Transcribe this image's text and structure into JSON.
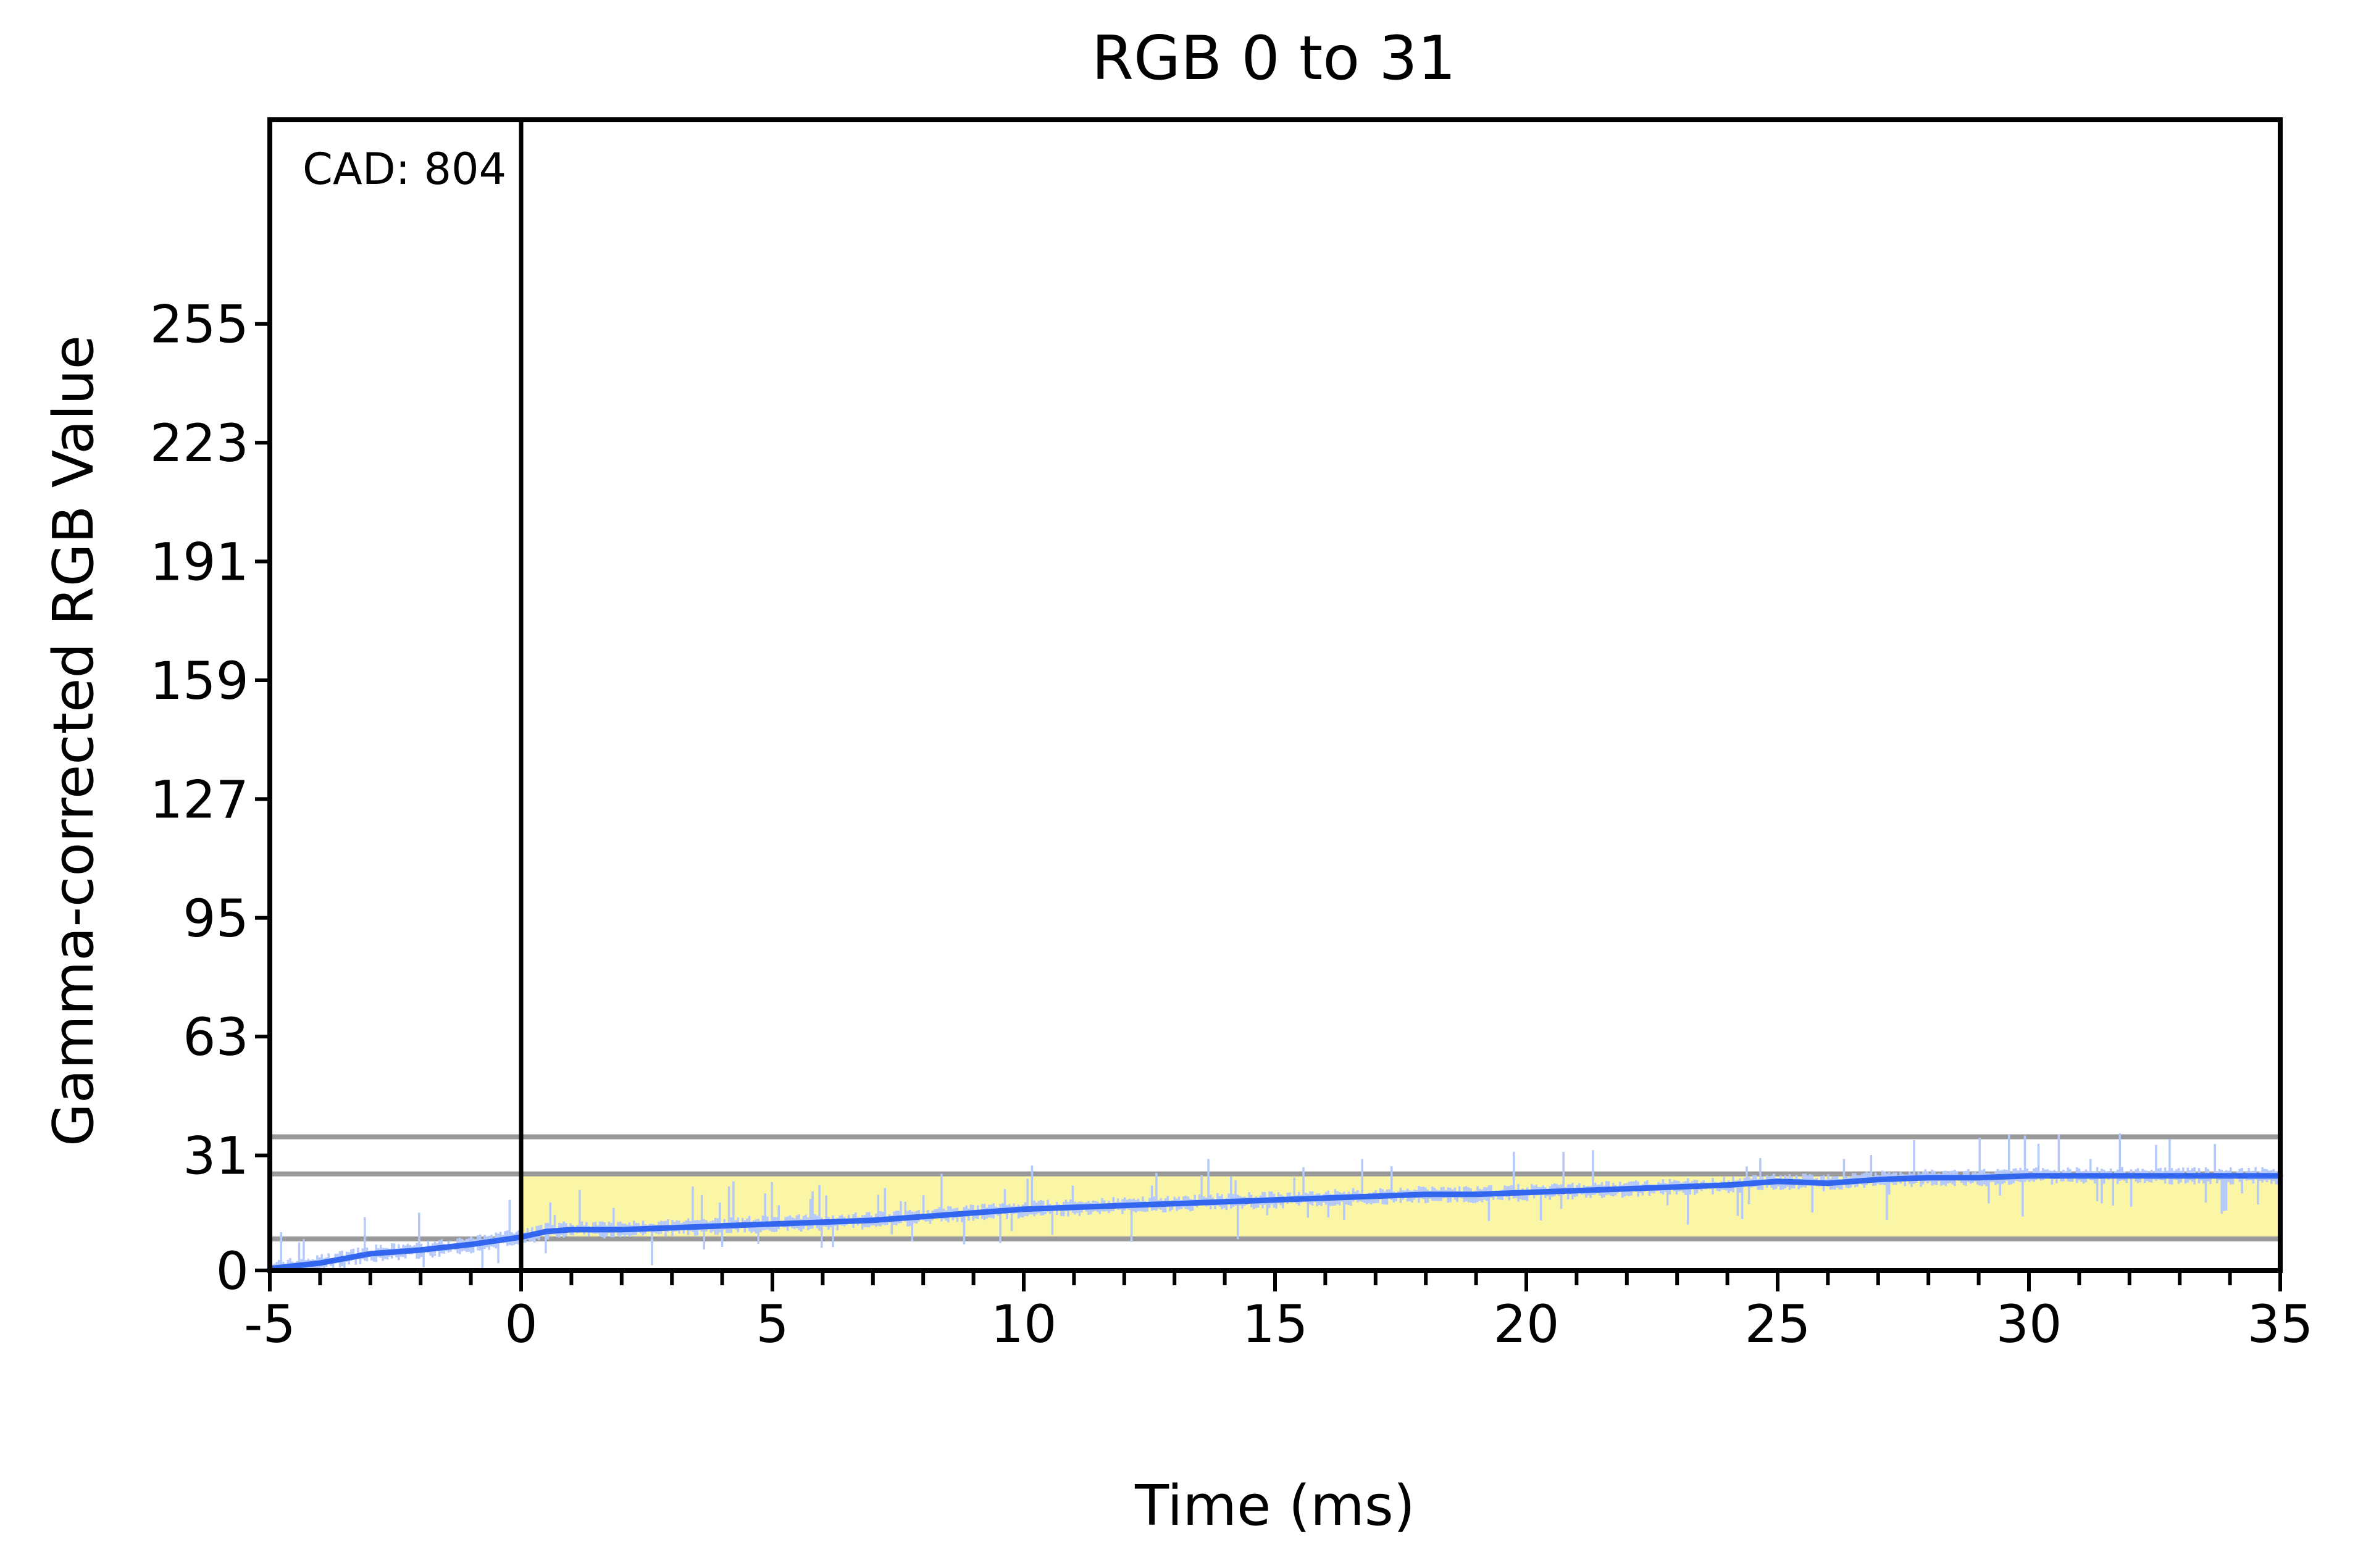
{
  "chart_data": {
    "type": "line",
    "title": "RGB 0 to 31",
    "xlabel": "Time (ms)",
    "ylabel": "Gamma-corrected RGB Value",
    "xlim": [
      -5,
      35
    ],
    "ylim": [
      0,
      310
    ],
    "x_ticks": [
      -5,
      0,
      5,
      10,
      15,
      20,
      25,
      30,
      35
    ],
    "x_tick_labels": [
      "-5",
      "0",
      "5",
      "10",
      "15",
      "20",
      "25",
      "30",
      "35"
    ],
    "y_ticks": [
      0,
      31,
      63,
      95,
      127,
      159,
      191,
      223,
      255
    ],
    "y_tick_labels": [
      "0",
      "31",
      "63",
      "95",
      "127",
      "159",
      "191",
      "223",
      "255"
    ],
    "grid": false,
    "annotation": "CAD: 804",
    "transition_start_ms": 0,
    "reference_levels": [
      8.5,
      26,
      36
    ],
    "highlight_band": {
      "x": [
        0,
        35
      ],
      "y": [
        8.5,
        26
      ],
      "color": "#fbf6a6"
    },
    "colors": {
      "smoothed": "#3366ee",
      "raw": "#b4c8fa",
      "reference": "#999999",
      "axis": "#000000"
    },
    "series": [
      {
        "role": "smoothed",
        "x": [
          -5,
          -4,
          -3,
          -2,
          -1,
          0,
          0.5,
          1,
          2,
          3,
          4,
          5,
          6,
          7,
          8,
          9,
          10,
          11,
          12,
          13,
          14,
          15,
          16,
          17,
          18,
          19,
          20,
          21,
          22,
          23,
          24,
          25,
          26,
          27,
          28,
          29,
          30,
          31,
          32,
          33,
          34,
          35
        ],
        "y": [
          0.5,
          2,
          4.5,
          5.5,
          7,
          9,
          10.5,
          11,
          11,
          11.5,
          12,
          12.5,
          13,
          13.5,
          14.5,
          15.5,
          16.5,
          17,
          17.5,
          18,
          18.5,
          19,
          19.5,
          20,
          20.5,
          20.5,
          21,
          21.5,
          22,
          22.5,
          23,
          24,
          23.5,
          24.5,
          25,
          25,
          25.5,
          25.5,
          25.5,
          25.5,
          25.5,
          25.5
        ]
      }
    ]
  }
}
